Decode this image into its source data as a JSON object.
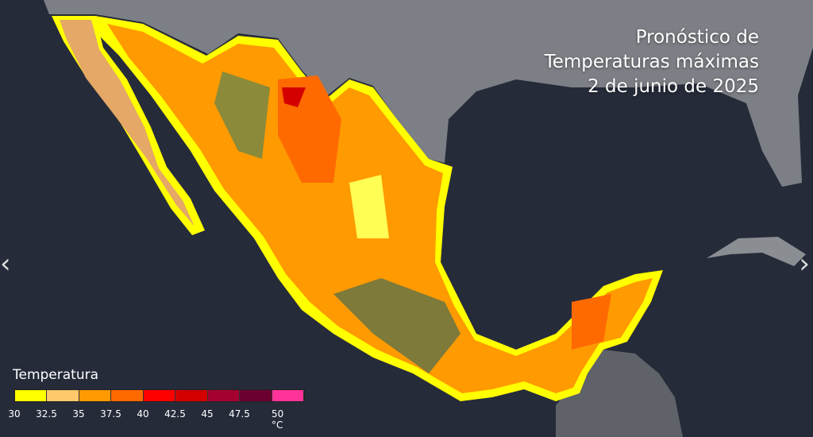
{
  "title": {
    "line1": "Pronóstico de",
    "line2": "Temperaturas máximas",
    "line3": "2 de junio de 2025"
  },
  "legend": {
    "title": "Temperatura",
    "colors": [
      "#ffff00",
      "#ffc96b",
      "#ff9a00",
      "#ff6a00",
      "#ff0000",
      "#d40000",
      "#a50030",
      "#6b0030",
      "#ff3399"
    ],
    "ticks": [
      "30",
      "32.5",
      "35",
      "37.5",
      "40",
      "42.5",
      "45",
      "47.5",
      "50 °C"
    ]
  },
  "nav": {
    "prev_icon": "chevron-left-icon",
    "next_icon": "chevron-right-icon",
    "prev": "‹",
    "next": "›"
  }
}
